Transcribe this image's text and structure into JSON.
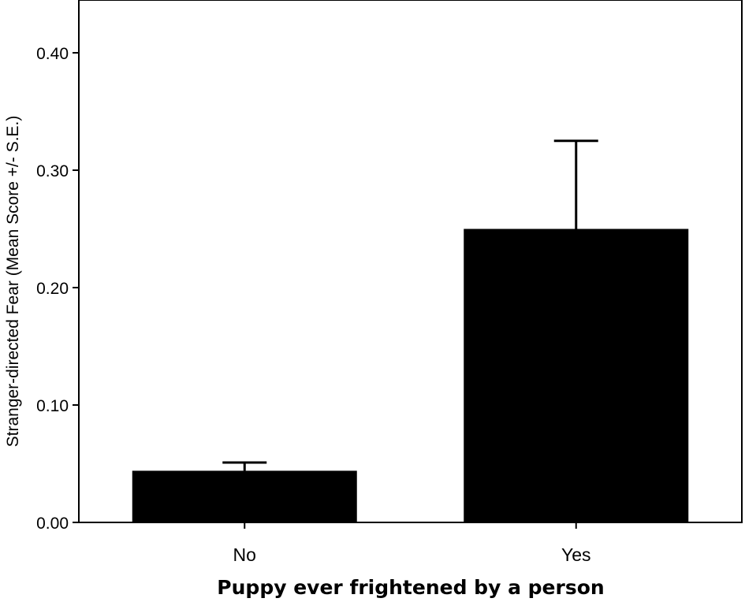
{
  "chart_data": {
    "type": "bar",
    "categories": [
      "No",
      "Yes"
    ],
    "values": [
      0.044,
      0.25
    ],
    "error_upper": [
      0.051,
      0.325
    ],
    "xlabel": "Puppy ever frightened by a person",
    "ylabel": "Stranger-directed Fear (Mean Score +/- S.E.)",
    "ylim": [
      0,
      0.44
    ],
    "yticks": [
      0.0,
      0.1,
      0.2,
      0.3,
      0.4
    ],
    "ytick_labels": [
      "0.00",
      "0.10",
      "0.20",
      "0.30",
      "0.40"
    ],
    "grid": false,
    "bar_color": "#000000",
    "frame_color": "#000000"
  }
}
